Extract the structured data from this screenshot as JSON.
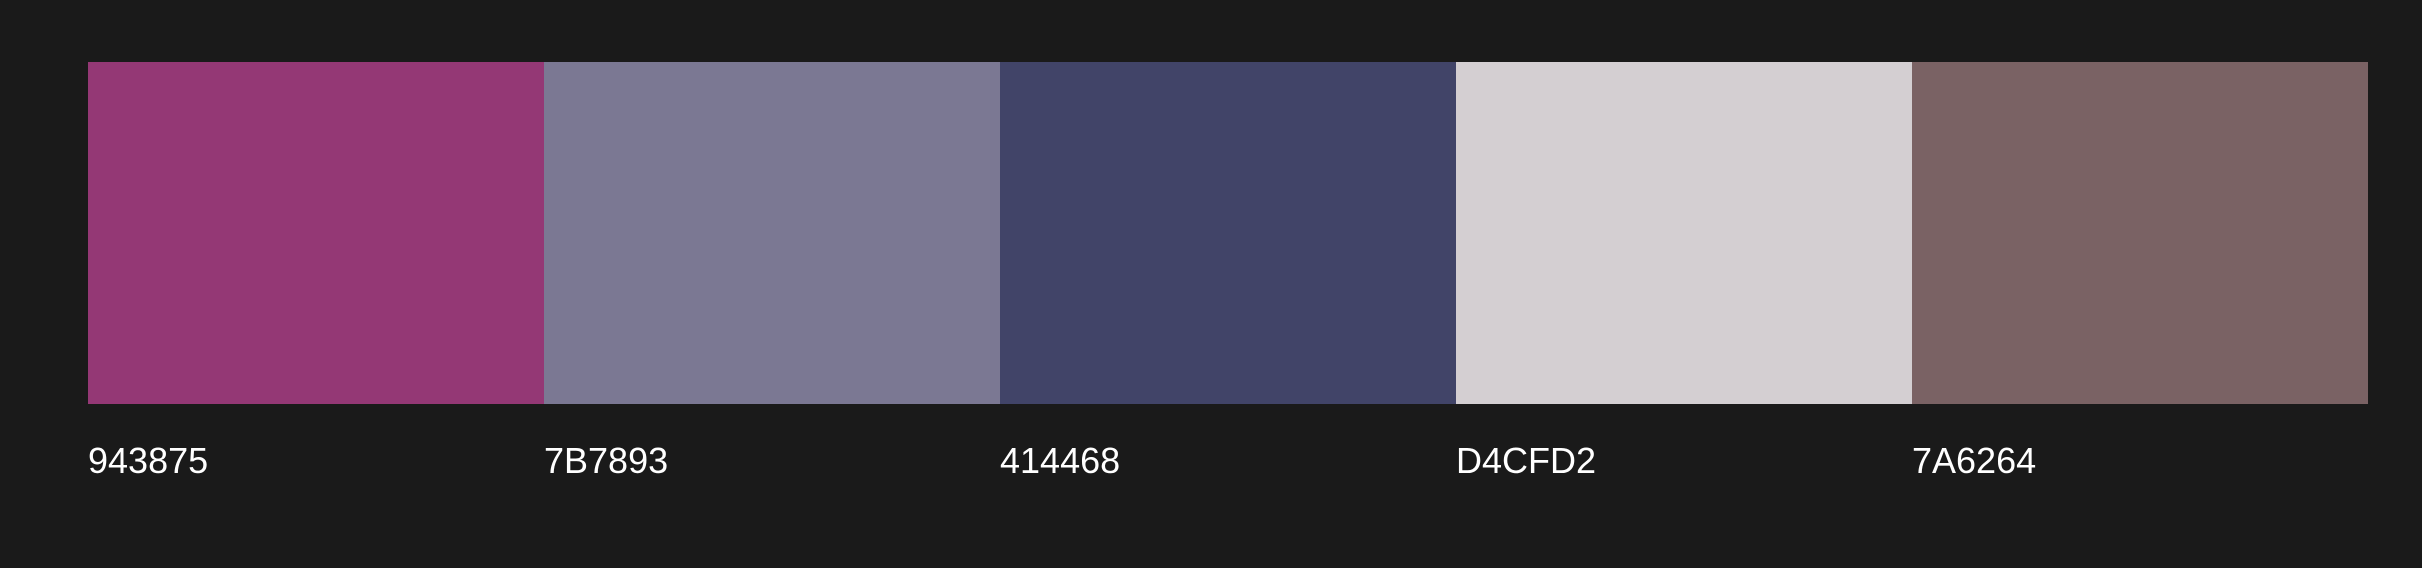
{
  "palette": {
    "colors": [
      {
        "code": "943875",
        "hex": "#943875"
      },
      {
        "code": "7B7893",
        "hex": "#7B7893"
      },
      {
        "code": "414468",
        "hex": "#414468"
      },
      {
        "code": "D4CFD2",
        "hex": "#D4CFD2"
      },
      {
        "code": "7A6264",
        "hex": "#7A6264"
      }
    ],
    "background": "#1a1a1a"
  }
}
